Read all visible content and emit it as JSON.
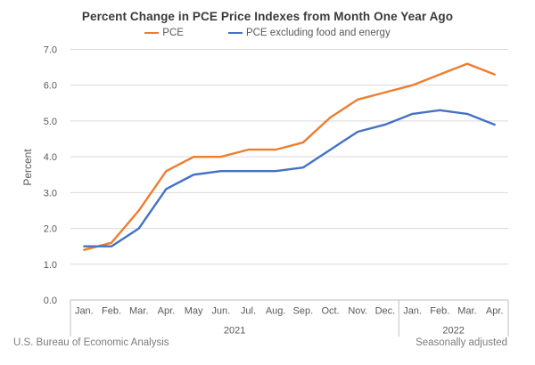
{
  "footer": {
    "left": "U.S. Bureau of Economic Analysis",
    "right": "Seasonally adjusted"
  },
  "chart_data": {
    "type": "line",
    "title": "Percent Change in PCE Price Indexes from Month One Year Ago",
    "ylabel": "Percent",
    "xlabel": "",
    "ylim": [
      0,
      7
    ],
    "ytick_values": [
      0,
      1,
      2,
      3,
      4,
      5,
      6,
      7
    ],
    "ytick_labels": [
      "0.0",
      "1.0",
      "2.0",
      "3.0",
      "4.0",
      "5.0",
      "6.0",
      "7.0"
    ],
    "grid": true,
    "legend_position": "top",
    "categories": [
      "Jan.",
      "Feb.",
      "Mar.",
      "Apr.",
      "May",
      "Jun.",
      "Jul.",
      "Aug.",
      "Sep.",
      "Oct.",
      "Nov.",
      "Dec.",
      "Jan.",
      "Feb.",
      "Mar.",
      "Apr."
    ],
    "year_groups": [
      {
        "label": "2021",
        "count": 12
      },
      {
        "label": "2022",
        "count": 4
      }
    ],
    "series": [
      {
        "name": "PCE",
        "color": "#ED7D31",
        "values": [
          1.4,
          1.6,
          2.5,
          3.6,
          4.0,
          4.0,
          4.2,
          4.2,
          4.4,
          5.1,
          5.6,
          5.8,
          6.0,
          6.3,
          6.6,
          6.3
        ]
      },
      {
        "name": "PCE excluding food and energy",
        "color": "#4472C4",
        "values": [
          1.5,
          1.5,
          2.0,
          3.1,
          3.5,
          3.6,
          3.6,
          3.6,
          3.7,
          4.2,
          4.7,
          4.9,
          5.2,
          5.3,
          5.2,
          4.9
        ]
      }
    ],
    "grid_color": "#D9D9D9",
    "axis_color": "#BFBFBF",
    "tick_text_color": "#595959",
    "title_color": "#3a3a3a"
  }
}
